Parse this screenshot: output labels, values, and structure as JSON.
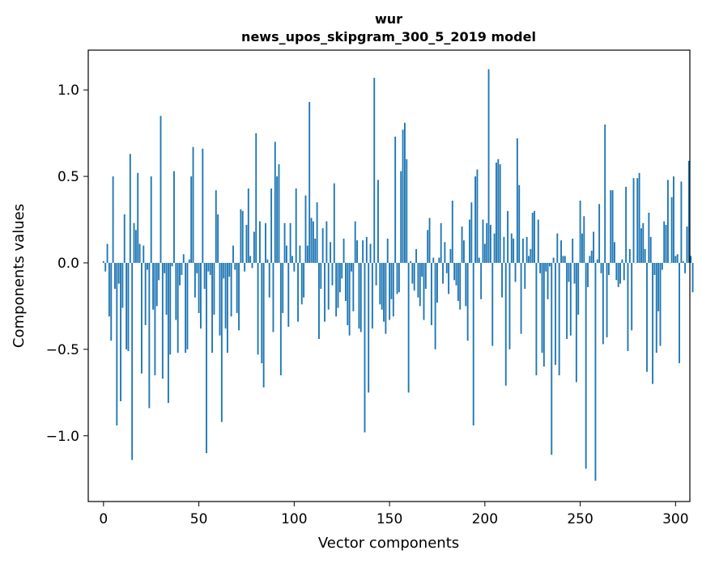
{
  "chart_data": {
    "type": "bar",
    "title": "wur",
    "subtitle": "news_upos_skipgram_300_5_2019 model",
    "xlabel": "Vector components",
    "ylabel": "Components values",
    "xlim": [
      -8,
      307.5
    ],
    "ylim": [
      -1.38,
      1.23
    ],
    "xticks": [
      0,
      50,
      100,
      150,
      200,
      250,
      300
    ],
    "xtick_labels": [
      "0",
      "50",
      "100",
      "150",
      "200",
      "250",
      "300"
    ],
    "yticks": [
      -1.0,
      -0.5,
      0.0,
      0.5,
      1.0
    ],
    "ytick_labels": [
      "−1.0",
      "−0.5",
      "0.0",
      "0.5",
      "1.0"
    ],
    "grid": false,
    "bar_color": "#1f77b4",
    "x_start": 0,
    "values": [
      0.01,
      -0.05,
      0.11,
      -0.31,
      -0.45,
      0.5,
      -0.15,
      -0.94,
      -0.12,
      -0.8,
      -0.26,
      0.28,
      -0.5,
      -0.51,
      0.63,
      -1.14,
      0.23,
      0.19,
      0.52,
      0.11,
      -0.64,
      0.1,
      -0.36,
      -0.04,
      -0.84,
      0.5,
      -0.27,
      -0.65,
      -0.25,
      -0.1,
      0.85,
      -0.67,
      -0.06,
      -0.3,
      -0.81,
      -0.53,
      -0.02,
      0.53,
      -0.33,
      -0.52,
      -0.13,
      -0.07,
      0.05,
      -0.52,
      -0.5,
      0.02,
      0.5,
      0.67,
      -0.2,
      -0.06,
      -0.29,
      -0.38,
      0.66,
      -0.15,
      -1.1,
      -0.05,
      -0.07,
      -0.52,
      -0.3,
      0.42,
      0.28,
      -0.42,
      -0.92,
      -0.09,
      -0.38,
      -0.52,
      -0.08,
      -0.31,
      0.1,
      -0.04,
      -0.29,
      -0.39,
      0.31,
      0.3,
      -0.05,
      0.22,
      0.43,
      0.04,
      -0.03,
      0.18,
      0.75,
      -0.53,
      0.24,
      -0.58,
      -0.72,
      0.23,
      0.02,
      -0.2,
      0.43,
      -0.4,
      0.7,
      0.5,
      0.57,
      -0.65,
      -0.29,
      0.23,
      0.1,
      -0.37,
      0.23,
      0.04,
      -0.05,
      0.43,
      -0.34,
      0.1,
      -0.24,
      -0.2,
      0.39,
      0.1,
      0.93,
      0.26,
      0.24,
      0.14,
      0.35,
      -0.44,
      -0.15,
      0.2,
      -0.34,
      0.24,
      -0.27,
      0.12,
      -0.13,
      0.46,
      -0.31,
      -0.26,
      -0.17,
      -0.09,
      0.14,
      -0.22,
      -0.36,
      -0.42,
      -0.05,
      -0.28,
      0.24,
      0.13,
      -0.38,
      -0.4,
      0.13,
      -0.98,
      0.15,
      -0.75,
      0.11,
      -0.38,
      1.07,
      -0.13,
      0.48,
      -0.24,
      -0.27,
      -0.34,
      -0.41,
      0.14,
      -0.33,
      -0.21,
      -0.31,
      0.73,
      -0.18,
      -0.17,
      0.53,
      0.77,
      0.81,
      0.6,
      -0.75,
      0.01,
      -0.12,
      -0.16,
      0.08,
      -0.2,
      -0.25,
      -0.08,
      -0.33,
      -0.15,
      0.19,
      0.26,
      -0.36,
      0.03,
      -0.5,
      -0.23,
      0.03,
      0.23,
      -0.12,
      0.12,
      -0.06,
      -0.18,
      0.08,
      0.36,
      -0.1,
      -0.13,
      -0.22,
      -0.27,
      0.21,
      0.13,
      -0.25,
      -0.45,
      0.25,
      0.35,
      -0.94,
      0.5,
      0.54,
      0.03,
      -0.21,
      0.25,
      0.11,
      0.23,
      1.12,
      0.22,
      -0.48,
      0.17,
      0.58,
      0.6,
      0.57,
      -0.2,
      0.15,
      -0.71,
      0.3,
      -0.5,
      0.17,
      0.14,
      -0.11,
      0.72,
      0.45,
      -0.41,
      0.14,
      -0.15,
      0.15,
      0.04,
      0.08,
      0.29,
      0.3,
      -0.65,
      0.25,
      -0.06,
      -0.52,
      -0.6,
      -0.05,
      -0.21,
      -0.02,
      -1.11,
      0.03,
      -0.59,
      0.17,
      -0.65,
      0.13,
      0.04,
      0.04,
      -0.44,
      -0.11,
      -0.42,
      0.14,
      -0.12,
      -0.69,
      -0.3,
      0.36,
      0.17,
      0.27,
      -1.19,
      -0.14,
      0.04,
      0.07,
      0.18,
      -1.26,
      0.02,
      0.34,
      -0.06,
      -0.47,
      0.8,
      -0.43,
      -0.07,
      0.42,
      0.42,
      0.12,
      -0.1,
      -0.14,
      -0.12,
      0.02,
      -0.1,
      0.44,
      -0.51,
      0.08,
      -0.39,
      0.49,
      0.0,
      0.49,
      0.52,
      0.2,
      0.23,
      0.08,
      -0.63,
      0.29,
      0.15,
      -0.7,
      -0.07,
      -0.52,
      -0.28,
      -0.48,
      -0.04,
      0.24,
      0.22,
      0.48,
      0.0,
      0.38,
      0.5,
      0.04,
      0.05,
      -0.58,
      0.47,
      0.01,
      -0.06,
      0.21,
      0.59,
      0.04,
      -0.17
    ]
  }
}
